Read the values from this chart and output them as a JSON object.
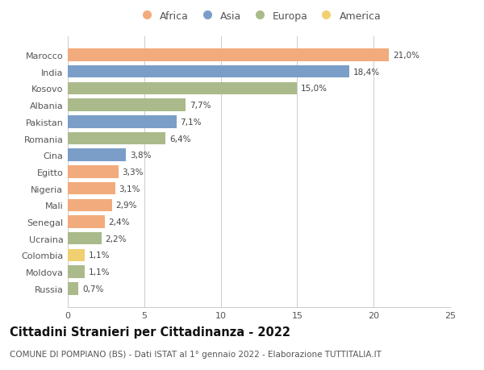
{
  "countries": [
    "Marocco",
    "India",
    "Kosovo",
    "Albania",
    "Pakistan",
    "Romania",
    "Cina",
    "Egitto",
    "Nigeria",
    "Mali",
    "Senegal",
    "Ucraina",
    "Colombia",
    "Moldova",
    "Russia"
  ],
  "values": [
    21.0,
    18.4,
    15.0,
    7.7,
    7.1,
    6.4,
    3.8,
    3.3,
    3.1,
    2.9,
    2.4,
    2.2,
    1.1,
    1.1,
    0.7
  ],
  "labels": [
    "21,0%",
    "18,4%",
    "15,0%",
    "7,7%",
    "7,1%",
    "6,4%",
    "3,8%",
    "3,3%",
    "3,1%",
    "2,9%",
    "2,4%",
    "2,2%",
    "1,1%",
    "1,1%",
    "0,7%"
  ],
  "continents": [
    "Africa",
    "Asia",
    "Europa",
    "Europa",
    "Asia",
    "Europa",
    "Asia",
    "Africa",
    "Africa",
    "Africa",
    "Africa",
    "Europa",
    "America",
    "Europa",
    "Europa"
  ],
  "colors": {
    "Africa": "#F2AB7C",
    "Asia": "#7B9EC9",
    "Europa": "#AABA8A",
    "America": "#F0D070"
  },
  "legend_order": [
    "Africa",
    "Asia",
    "Europa",
    "America"
  ],
  "xlim": [
    0,
    25
  ],
  "xticks": [
    0,
    5,
    10,
    15,
    20,
    25
  ],
  "title": "Cittadini Stranieri per Cittadinanza - 2022",
  "subtitle": "COMUNE DI POMPIANO (BS) - Dati ISTAT al 1° gennaio 2022 - Elaborazione TUTTITALIA.IT",
  "background_color": "#ffffff",
  "grid_color": "#cccccc",
  "bar_height": 0.75,
  "title_fontsize": 10.5,
  "subtitle_fontsize": 7.5,
  "label_fontsize": 7.5,
  "tick_fontsize": 8,
  "legend_fontsize": 9
}
